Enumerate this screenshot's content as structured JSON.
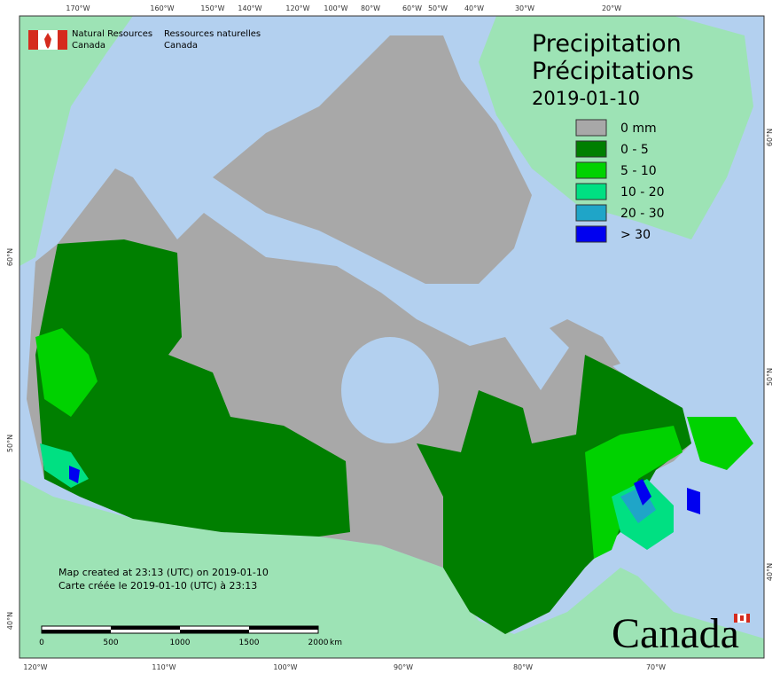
{
  "header": {
    "agency_en": "Natural Resources",
    "agency_en_2": "Canada",
    "agency_fr": "Ressources naturelles",
    "agency_fr_2": "Canada"
  },
  "title": {
    "en": "Precipitation",
    "fr": "Précipitations",
    "date": "2019-01-10"
  },
  "legend": [
    {
      "label": "0 mm",
      "color": "#a8a8a8"
    },
    {
      "label": "0 - 5",
      "color": "#007f00"
    },
    {
      "label": "5 - 10",
      "color": "#00d200"
    },
    {
      "label": "10 - 20",
      "color": "#00e082"
    },
    {
      "label": "20 - 30",
      "color": "#1fa5c8"
    },
    {
      "label": "> 30",
      "color": "#0000f0"
    }
  ],
  "graticule": {
    "top": [
      "170°W",
      "160°W",
      "150°W",
      "140°W",
      "120°W",
      "100°W",
      "80°W",
      "60°W",
      "50°W",
      "40°W",
      "30°W",
      "20°W"
    ],
    "bottom": [
      "120°W",
      "110°W",
      "100°W",
      "90°W",
      "80°W",
      "70°W"
    ],
    "left": [
      "60°N",
      "50°N",
      "40°N"
    ],
    "right": [
      "60°N",
      "50°N",
      "40°N"
    ]
  },
  "notes": [
    "Map created at 23:13 (UTC) on 2019-01-10",
    "Carte créée le 2019-01-10 (UTC) à 23:13"
  ],
  "scale_bar": {
    "ticks": [
      "0",
      "500",
      "1000",
      "1500",
      "2000"
    ],
    "unit": "km"
  },
  "wordmark": "Canada"
}
